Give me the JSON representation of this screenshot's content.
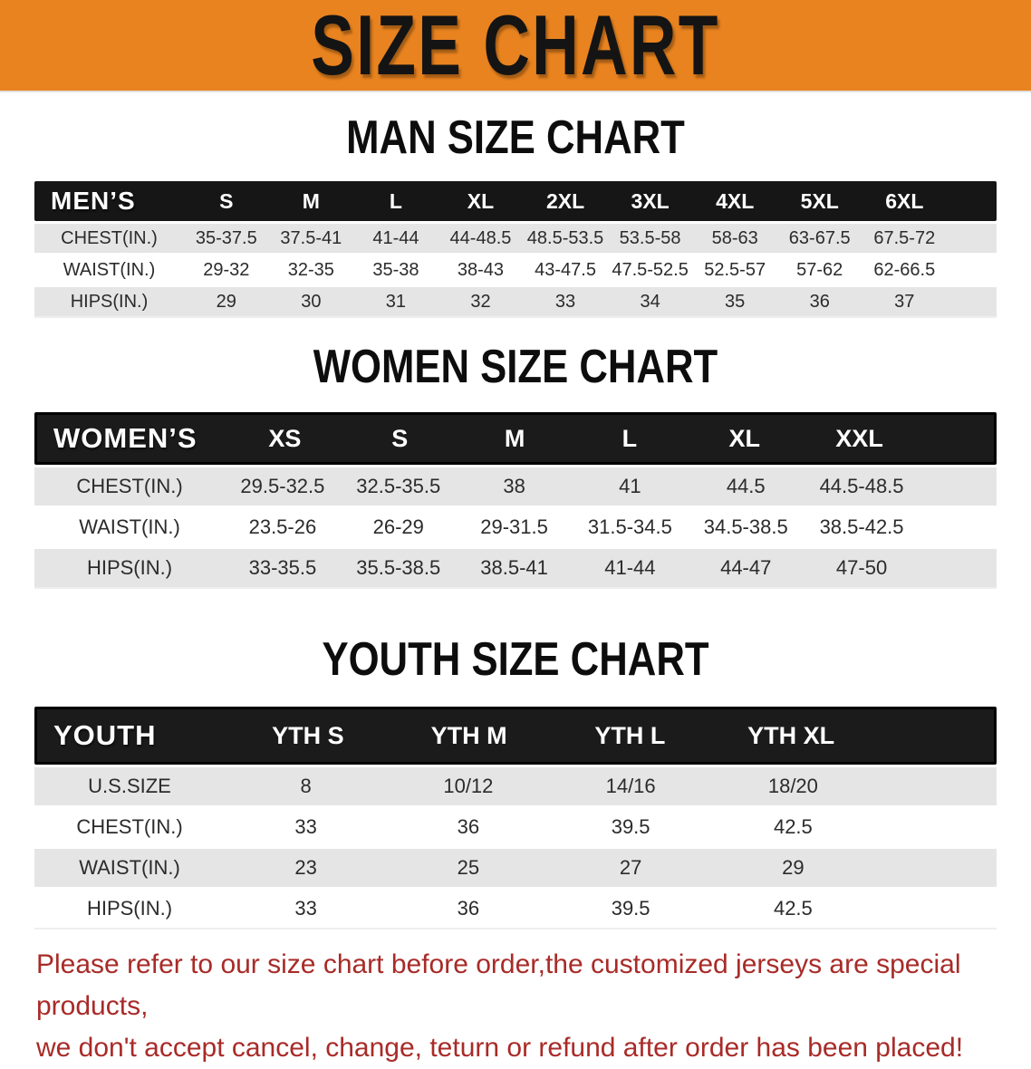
{
  "banner": {
    "title": "SIZE CHART"
  },
  "colors": {
    "banner-bg": "#E8831F",
    "banner-text": "#141414",
    "header-bar": "#161616",
    "header-text": "#FFFFFF",
    "stripe-gray": "#E5E5E5",
    "body-text": "#2B2B2B",
    "heading-text": "#0D0D0D",
    "disclaimer-red": "#A82B28"
  },
  "sections": [
    {
      "heading": "MAN SIZE CHART",
      "table": {
        "title": "MEN’S",
        "columns": [
          "S",
          "M",
          "L",
          "XL",
          "2XL",
          "3XL",
          "4XL",
          "5XL",
          "6XL"
        ],
        "rows": [
          {
            "label": "CHEST(IN.)",
            "values": [
              "35-37.5",
              "37.5-41",
              "41-44",
              "44-48.5",
              "48.5-53.5",
              "53.5-58",
              "58-63",
              "63-67.5",
              "67.5-72"
            ]
          },
          {
            "label": "WAIST(IN.)",
            "values": [
              "29-32",
              "32-35",
              "35-38",
              "38-43",
              "43-47.5",
              "47.5-52.5",
              "52.5-57",
              "57-62",
              "62-66.5"
            ]
          },
          {
            "label": "HIPS(IN.)",
            "values": [
              "29",
              "30",
              "31",
              "32",
              "33",
              "34",
              "35",
              "36",
              "37"
            ]
          }
        ]
      }
    },
    {
      "heading": "WOMEN SIZE CHART",
      "table": {
        "title": "WOMEN’S",
        "columns": [
          "XS",
          "S",
          "M",
          "L",
          "XL",
          "XXL"
        ],
        "rows": [
          {
            "label": "CHEST(IN.)",
            "values": [
              "29.5-32.5",
              "32.5-35.5",
              "38",
              "41",
              "44.5",
              "44.5-48.5"
            ]
          },
          {
            "label": "WAIST(IN.)",
            "values": [
              "23.5-26",
              "26-29",
              "29-31.5",
              "31.5-34.5",
              "34.5-38.5",
              "38.5-42.5"
            ]
          },
          {
            "label": "HIPS(IN.)",
            "values": [
              "33-35.5",
              "35.5-38.5",
              "38.5-41",
              "41-44",
              "44-47",
              "47-50"
            ]
          }
        ]
      }
    },
    {
      "heading": "YOUTH SIZE CHART",
      "table": {
        "title": "YOUTH",
        "columns": [
          "YTH S",
          "YTH M",
          "YTH L",
          "YTH XL"
        ],
        "rows": [
          {
            "label": "U.S.SIZE",
            "values": [
              "8",
              "10/12",
              "14/16",
              "18/20"
            ]
          },
          {
            "label": "CHEST(IN.)",
            "values": [
              "33",
              "36",
              "39.5",
              "42.5"
            ]
          },
          {
            "label": "WAIST(IN.)",
            "values": [
              "23",
              "25",
              "27",
              "29"
            ]
          },
          {
            "label": "HIPS(IN.)",
            "values": [
              "33",
              "36",
              "39.5",
              "42.5"
            ]
          }
        ]
      }
    }
  ],
  "disclaimer": {
    "lines": [
      "Please refer to our size chart before order,the customized jerseys are special products,",
      "we don't accept cancel, change, teturn or refund after order has been placed!"
    ]
  }
}
